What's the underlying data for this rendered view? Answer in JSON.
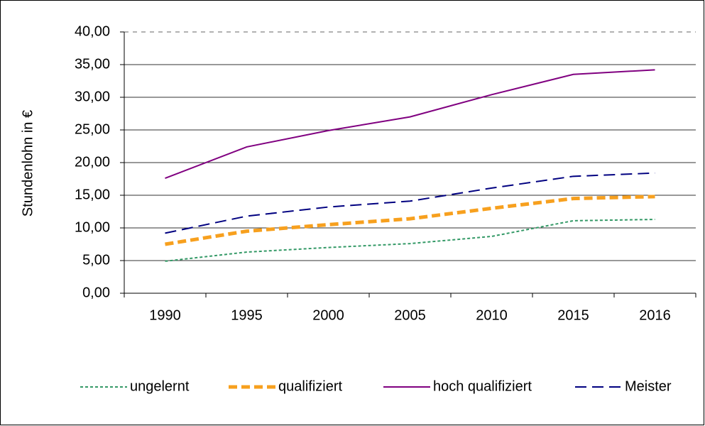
{
  "chart_data": {
    "type": "line",
    "ylabel": "Stundenlohn in €",
    "categories": [
      "1990",
      "1995",
      "2000",
      "2005",
      "2010",
      "2015",
      "2016"
    ],
    "series": [
      {
        "name": "ungelernt",
        "color": "#339966",
        "line_style": "dotted",
        "values": [
          4.9,
          6.3,
          7.0,
          7.6,
          8.7,
          11.1,
          11.3
        ]
      },
      {
        "name": "qualifiziert",
        "color": "#f7a01e",
        "line_style": "thick-dashed",
        "values": [
          7.5,
          9.5,
          10.5,
          11.4,
          13.0,
          14.5,
          14.8
        ]
      },
      {
        "name": "hoch qualifiziert",
        "color": "#800080",
        "line_style": "solid",
        "values": [
          17.6,
          22.4,
          24.9,
          27.0,
          30.4,
          33.5,
          34.2
        ]
      },
      {
        "name": "Meister",
        "color": "#000080",
        "line_style": "dashed",
        "values": [
          9.2,
          11.8,
          13.2,
          14.1,
          16.1,
          17.9,
          18.4
        ]
      }
    ],
    "ylim": [
      0,
      40
    ],
    "yticks": [
      {
        "value": 0,
        "label": "0,00"
      },
      {
        "value": 5,
        "label": "5,00"
      },
      {
        "value": 10,
        "label": "10,00"
      },
      {
        "value": 15,
        "label": "15,00"
      },
      {
        "value": 20,
        "label": "20,00"
      },
      {
        "value": 25,
        "label": "25,00"
      },
      {
        "value": 30,
        "label": "30,00"
      },
      {
        "value": 35,
        "label": "35,00"
      },
      {
        "value": 40,
        "label": "40,00"
      }
    ],
    "grid": true,
    "legend": "bottom"
  }
}
